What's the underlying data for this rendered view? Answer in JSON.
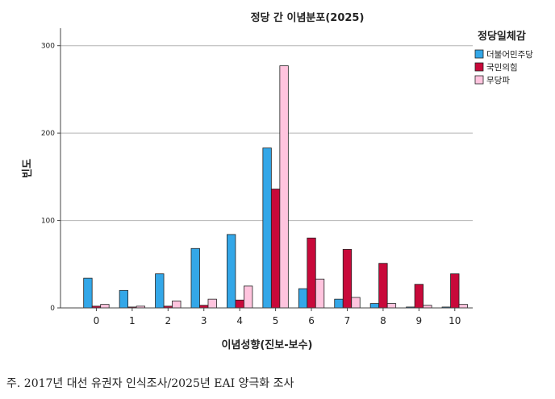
{
  "chart_data": {
    "type": "bar",
    "title": "정당 간 이념분포(2025)",
    "xlabel": "이념성향(진보-보수)",
    "ylabel": "빈도",
    "ylim": [
      0,
      320
    ],
    "yticks": [
      0,
      100,
      200,
      300
    ],
    "grid": true,
    "legend": {
      "title": "정당일체감",
      "position": "right"
    },
    "categories": [
      "0",
      "1",
      "2",
      "3",
      "4",
      "5",
      "6",
      "7",
      "8",
      "9",
      "10"
    ],
    "series": [
      {
        "name": "더불어민주당",
        "color": "#33a7e8",
        "values": [
          34,
          20,
          39,
          68,
          84,
          183,
          22,
          10,
          5,
          1,
          1
        ]
      },
      {
        "name": "국민의힘",
        "color": "#c8093a",
        "values": [
          2,
          1,
          2,
          3,
          9,
          136,
          80,
          67,
          51,
          27,
          39
        ]
      },
      {
        "name": "무당파",
        "color": "#ffc4de",
        "values": [
          4,
          2,
          8,
          10,
          25,
          277,
          33,
          12,
          5,
          3,
          4
        ]
      }
    ]
  },
  "footnote": "주. 2017년 대선 유권자 인식조사/2025년 EAI 양극화 조사"
}
